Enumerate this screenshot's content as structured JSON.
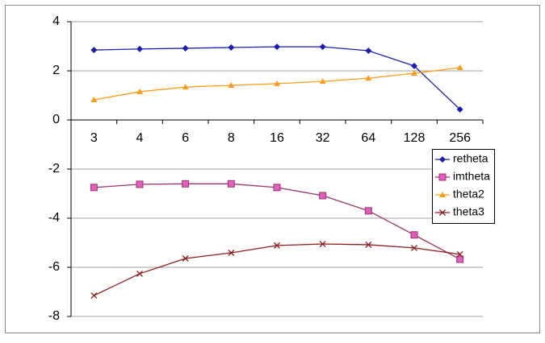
{
  "chart_data": {
    "type": "line",
    "categories": [
      "3",
      "4",
      "6",
      "8",
      "16",
      "32",
      "64",
      "128",
      "256"
    ],
    "series": [
      {
        "name": "retheta",
        "color": "#1c1cb0",
        "marker": "diamond",
        "values": [
          2.85,
          2.89,
          2.92,
          2.95,
          2.98,
          2.98,
          2.82,
          2.2,
          0.43
        ]
      },
      {
        "name": "imtheta",
        "color": "#99336a",
        "marker": "square",
        "values": [
          -2.75,
          -2.62,
          -2.6,
          -2.6,
          -2.75,
          -3.08,
          -3.7,
          -4.68,
          -5.67
        ]
      },
      {
        "name": "theta2",
        "color": "#ff9b1a",
        "marker": "triangle",
        "values": [
          0.82,
          1.15,
          1.34,
          1.41,
          1.48,
          1.57,
          1.7,
          1.9,
          2.13
        ]
      },
      {
        "name": "theta3",
        "color": "#8b1c1c",
        "marker": "x",
        "values": [
          -7.15,
          -6.26,
          -5.64,
          -5.41,
          -5.11,
          -5.05,
          -5.08,
          -5.21,
          -5.47
        ]
      }
    ],
    "ylim": [
      -8,
      4
    ],
    "yticks": [
      -8,
      -6,
      -4,
      -2,
      0,
      2,
      4
    ],
    "grid": true,
    "legend": "right"
  }
}
